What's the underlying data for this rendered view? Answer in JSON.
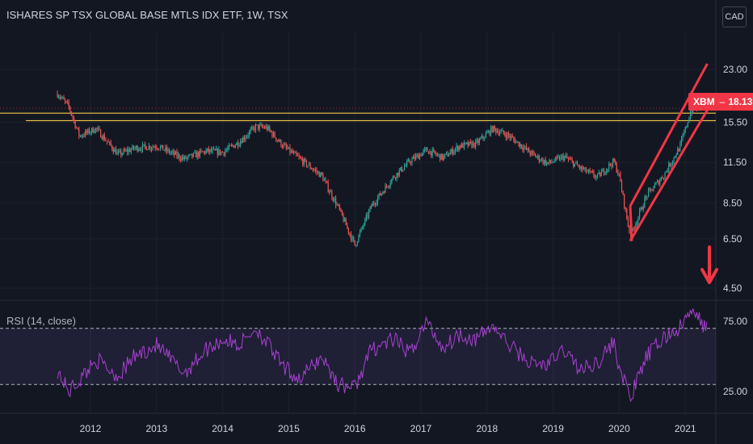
{
  "header": {
    "title": "ISHARES SP TSX GLOBAL BASE MTLS IDX ETF, 1W, TSX",
    "currency": "CAD"
  },
  "price_tag": {
    "symbol": "XBM",
    "value": "18.13",
    "color": "#f23645"
  },
  "rsi": {
    "label": "RSI (14, close)",
    "upper": 70,
    "lower": 30,
    "color": "#a741d0",
    "band_color": "#7e57c2"
  },
  "colors": {
    "background": "#131722",
    "up": "#26a69a",
    "down": "#ef5350",
    "support_line": "#f5c842",
    "channel": "#f23645",
    "text": "#d1d4dc"
  },
  "icons": {
    "down_arrow": "arrow-down-icon"
  },
  "chart_data": [
    {
      "type": "candlestick",
      "title": "ISHARES SP TSX GLOBAL BASE MTLS IDX ETF, 1W, TSX",
      "y_scale": "log",
      "y_ticks": [
        23.0,
        15.5,
        11.5,
        8.5,
        6.5,
        4.5
      ],
      "x_ticks": [
        "2012",
        "2013",
        "2014",
        "2015",
        "2016",
        "2017",
        "2018",
        "2019",
        "2020",
        "2021"
      ],
      "series": [
        {
          "x": [
            "2011-07",
            "2011-09",
            "2011-11",
            "2012-02",
            "2012-06",
            "2012-09",
            "2013-01",
            "2013-06",
            "2013-10",
            "2014-01",
            "2014-04",
            "2014-07",
            "2014-09",
            "2014-12",
            "2015-03",
            "2015-07",
            "2015-10",
            "2016-01",
            "2016-04",
            "2016-08",
            "2016-11",
            "2017-02",
            "2017-05",
            "2017-08",
            "2017-11",
            "2018-02",
            "2018-05",
            "2018-09",
            "2018-12",
            "2019-03",
            "2019-06",
            "2019-09",
            "2019-12",
            "2020-01",
            "2020-03",
            "2020-06",
            "2020-09",
            "2020-12",
            "2021-02",
            "2021-05"
          ],
          "close": [
            19.2,
            17.5,
            14.0,
            14.8,
            12.2,
            12.8,
            13.0,
            11.8,
            12.5,
            12.4,
            13.4,
            15.0,
            14.9,
            13.0,
            11.8,
            10.4,
            8.2,
            6.2,
            8.3,
            10.3,
            11.6,
            12.6,
            11.9,
            13.0,
            13.2,
            14.8,
            14.0,
            12.3,
            11.4,
            12.0,
            11.0,
            10.3,
            11.6,
            10.4,
            6.6,
            9.0,
            10.4,
            12.9,
            16.8,
            18.1
          ]
        }
      ],
      "annotations": {
        "support_lines": [
          16.6,
          15.7
        ],
        "channel": {
          "start": "2020-03",
          "end": "2021-05",
          "upper": [
            8.3,
            24.0
          ],
          "lower": [
            6.4,
            17.0
          ]
        }
      }
    },
    {
      "type": "line",
      "title": "RSI (14, close)",
      "y_ticks": [
        75.0,
        25.0
      ],
      "ylim": [
        15,
        85
      ],
      "bands": [
        30,
        70
      ],
      "x": [
        "2011-07",
        "2011-09",
        "2011-11",
        "2012-02",
        "2012-06",
        "2012-09",
        "2013-01",
        "2013-06",
        "2013-10",
        "2014-01",
        "2014-04",
        "2014-07",
        "2014-09",
        "2014-12",
        "2015-03",
        "2015-07",
        "2015-10",
        "2016-01",
        "2016-04",
        "2016-08",
        "2016-11",
        "2017-02",
        "2017-05",
        "2017-08",
        "2017-11",
        "2018-02",
        "2018-05",
        "2018-09",
        "2018-12",
        "2019-03",
        "2019-06",
        "2019-09",
        "2019-12",
        "2020-01",
        "2020-03",
        "2020-06",
        "2020-09",
        "2020-12",
        "2021-02",
        "2021-05"
      ],
      "values": [
        40,
        25,
        33,
        48,
        36,
        50,
        58,
        38,
        55,
        62,
        58,
        70,
        60,
        42,
        34,
        50,
        30,
        28,
        55,
        62,
        52,
        75,
        56,
        66,
        62,
        72,
        58,
        45,
        44,
        55,
        40,
        46,
        60,
        43,
        20,
        50,
        63,
        70,
        82,
        70
      ]
    }
  ]
}
